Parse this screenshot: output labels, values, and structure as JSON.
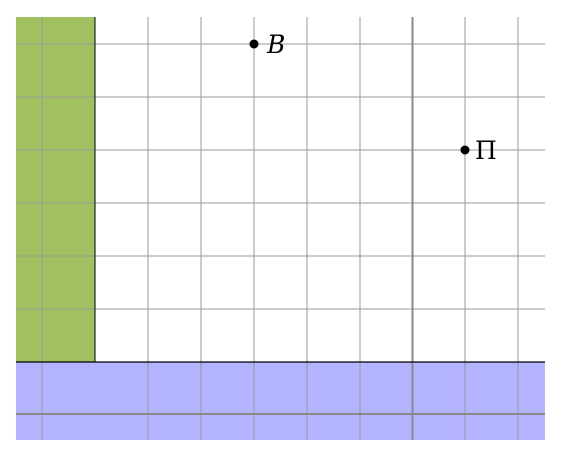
{
  "diagram": {
    "colors": {
      "green_region": "#a1c160",
      "blue_region": "#b3b3ff",
      "grid_line": "#9a9a9a",
      "axis_line": "#8a8a8a",
      "point": "#000000"
    },
    "points": [
      {
        "id": "B",
        "label": "B",
        "italic": true
      },
      {
        "id": "Pi",
        "label": "Π",
        "italic": false
      }
    ]
  }
}
